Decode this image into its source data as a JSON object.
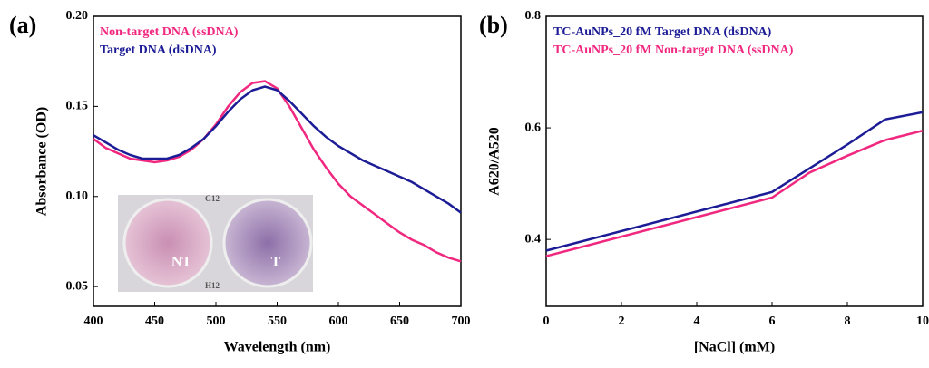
{
  "chart_data": [
    {
      "type": "line",
      "panel_label": "(a)",
      "x_label": "Wavelength (nm)",
      "y_label": "Absorbance (OD)",
      "x": [
        400,
        410,
        420,
        430,
        440,
        450,
        460,
        470,
        480,
        490,
        500,
        510,
        520,
        530,
        540,
        550,
        560,
        570,
        580,
        590,
        600,
        610,
        620,
        630,
        640,
        650,
        660,
        670,
        680,
        690,
        700
      ],
      "series": [
        {
          "name": "Non-target DNA (ssDNA)",
          "color": "#f0287f",
          "values": [
            0.132,
            0.127,
            0.124,
            0.121,
            0.12,
            0.119,
            0.12,
            0.122,
            0.126,
            0.132,
            0.14,
            0.15,
            0.158,
            0.163,
            0.164,
            0.16,
            0.15,
            0.138,
            0.126,
            0.116,
            0.107,
            0.1,
            0.095,
            0.09,
            0.085,
            0.08,
            0.076,
            0.073,
            0.069,
            0.066,
            0.064
          ]
        },
        {
          "name": "Target DNA (dsDNA)",
          "color": "#1c1c96",
          "values": [
            0.134,
            0.13,
            0.126,
            0.123,
            0.121,
            0.121,
            0.121,
            0.123,
            0.127,
            0.132,
            0.139,
            0.147,
            0.154,
            0.159,
            0.161,
            0.159,
            0.153,
            0.146,
            0.139,
            0.133,
            0.128,
            0.124,
            0.12,
            0.117,
            0.114,
            0.111,
            0.108,
            0.104,
            0.1,
            0.096,
            0.091
          ]
        }
      ],
      "xlim": [
        400,
        700
      ],
      "xticks": [
        400,
        450,
        500,
        550,
        600,
        650,
        700
      ],
      "ylim": [
        0.039,
        0.2
      ],
      "yticks": [
        0.05,
        {
          "value": 0.1,
          "label": "0.10"
        },
        0.15,
        {
          "value": 0.2,
          "label": "0.20"
        }
      ],
      "inset_labels": [
        "NT",
        "T",
        "G12",
        "H12"
      ]
    },
    {
      "type": "line",
      "panel_label": "(b)",
      "x_label": "[NaCl] (mM)",
      "y_label": "A620/A520",
      "series": [
        {
          "name": "TC-AuNPs_20 fM Target DNA (dsDNA)",
          "color": "#1c1c96",
          "x": [
            0,
            6,
            8,
            9,
            10
          ],
          "values": [
            0.38,
            0.485,
            0.57,
            0.615,
            0.628
          ]
        },
        {
          "name": "TC-AuNPs_20 fM Non-target DNA (ssDNA)",
          "color": "#f0287f",
          "x": [
            0,
            6,
            7,
            8,
            9,
            10
          ],
          "values": [
            0.37,
            0.475,
            0.52,
            0.55,
            0.578,
            0.595
          ]
        }
      ],
      "xlim": [
        0,
        10
      ],
      "xticks": [
        0,
        2,
        4,
        6,
        8,
        10
      ],
      "ylim": [
        0.28,
        0.8
      ],
      "yticks": [
        0.4,
        0.6,
        0.8
      ]
    }
  ]
}
